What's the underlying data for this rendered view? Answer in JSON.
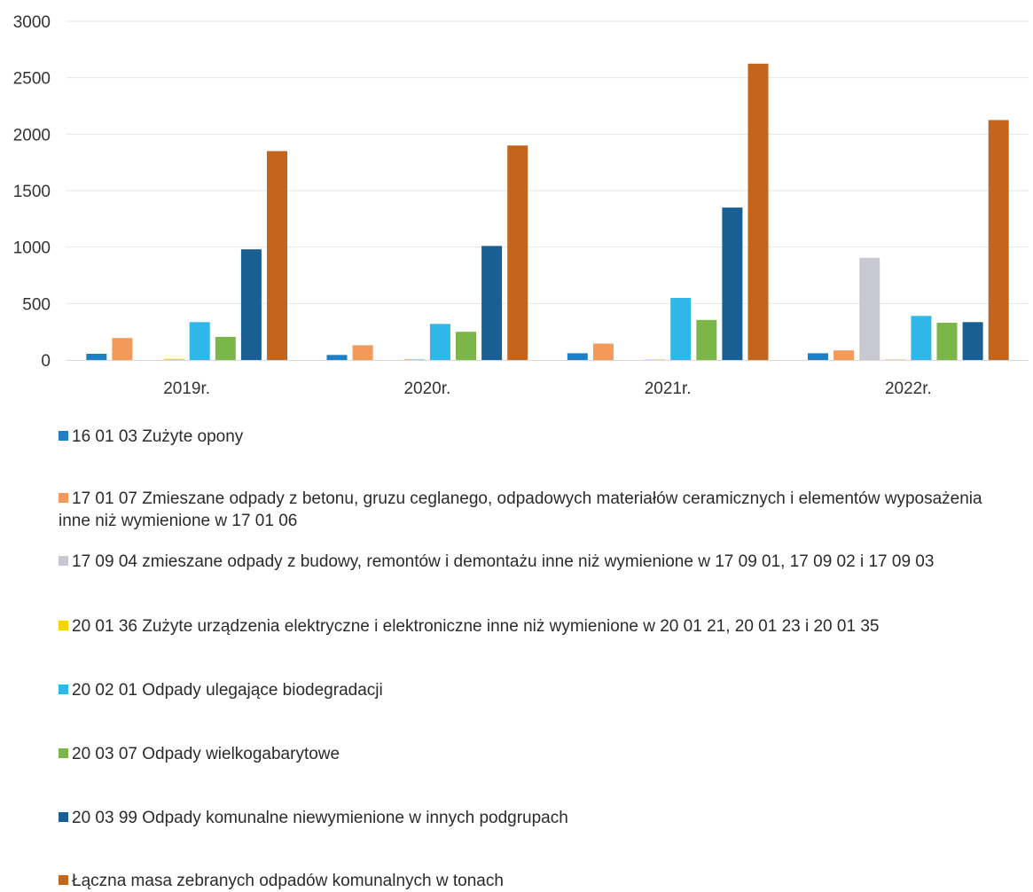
{
  "chart_data": {
    "type": "bar",
    "title": "",
    "xlabel": "",
    "ylabel": "",
    "ylim": [
      0,
      3000
    ],
    "yticks": [
      0,
      500,
      1000,
      1500,
      2000,
      2500,
      3000
    ],
    "grid": true,
    "legend_position": "bottom",
    "categories": [
      "2019r.",
      "2020r.",
      "2021r.",
      "2022r."
    ],
    "series": [
      {
        "name": "16 01 03 Zużyte opony",
        "color": "#1f7fc4",
        "values": [
          55,
          45,
          60,
          60
        ]
      },
      {
        "name": "17 01 07 Zmieszane odpady z betonu, gruzu ceglanego, odpadowych materiałów ceramicznych i elementów wyposażenia inne niż wymienione w 17 01 06",
        "color": "#f39a5b",
        "values": [
          195,
          130,
          145,
          85
        ]
      },
      {
        "name": "17 09 04 zmieszane odpady z budowy, remontów i demontażu inne niż wymienione w 17 09 01, 17 09 02 i 17 09 03",
        "color": "#c8c8d2",
        "values": [
          0,
          0,
          0,
          905
        ]
      },
      {
        "name": "20 01 36 Zużyte urządzenia elektryczne i elektroniczne inne niż wymienione w 20 01 21, 20 01 23 i 20 01 35",
        "color": "#f5d400",
        "values": [
          10,
          8,
          5,
          5
        ]
      },
      {
        "name": "20 02 01 Odpady ulegające biodegradacji",
        "color": "#2fb7ea",
        "values": [
          335,
          320,
          550,
          390
        ]
      },
      {
        "name": "20 03 07 Odpady wielkogabarytowe",
        "color": "#7ab648",
        "values": [
          205,
          250,
          355,
          330
        ]
      },
      {
        "name": "20 03 99 Odpady komunalne niewymienione w innych podgrupach",
        "color": "#1a5f93",
        "values": [
          980,
          1010,
          1350,
          335
        ]
      },
      {
        "name": "Łączna masa zebranych odpadów komunalnych w tonach",
        "color": "#c4651e",
        "values": [
          1850,
          1900,
          2625,
          2125
        ]
      }
    ]
  }
}
